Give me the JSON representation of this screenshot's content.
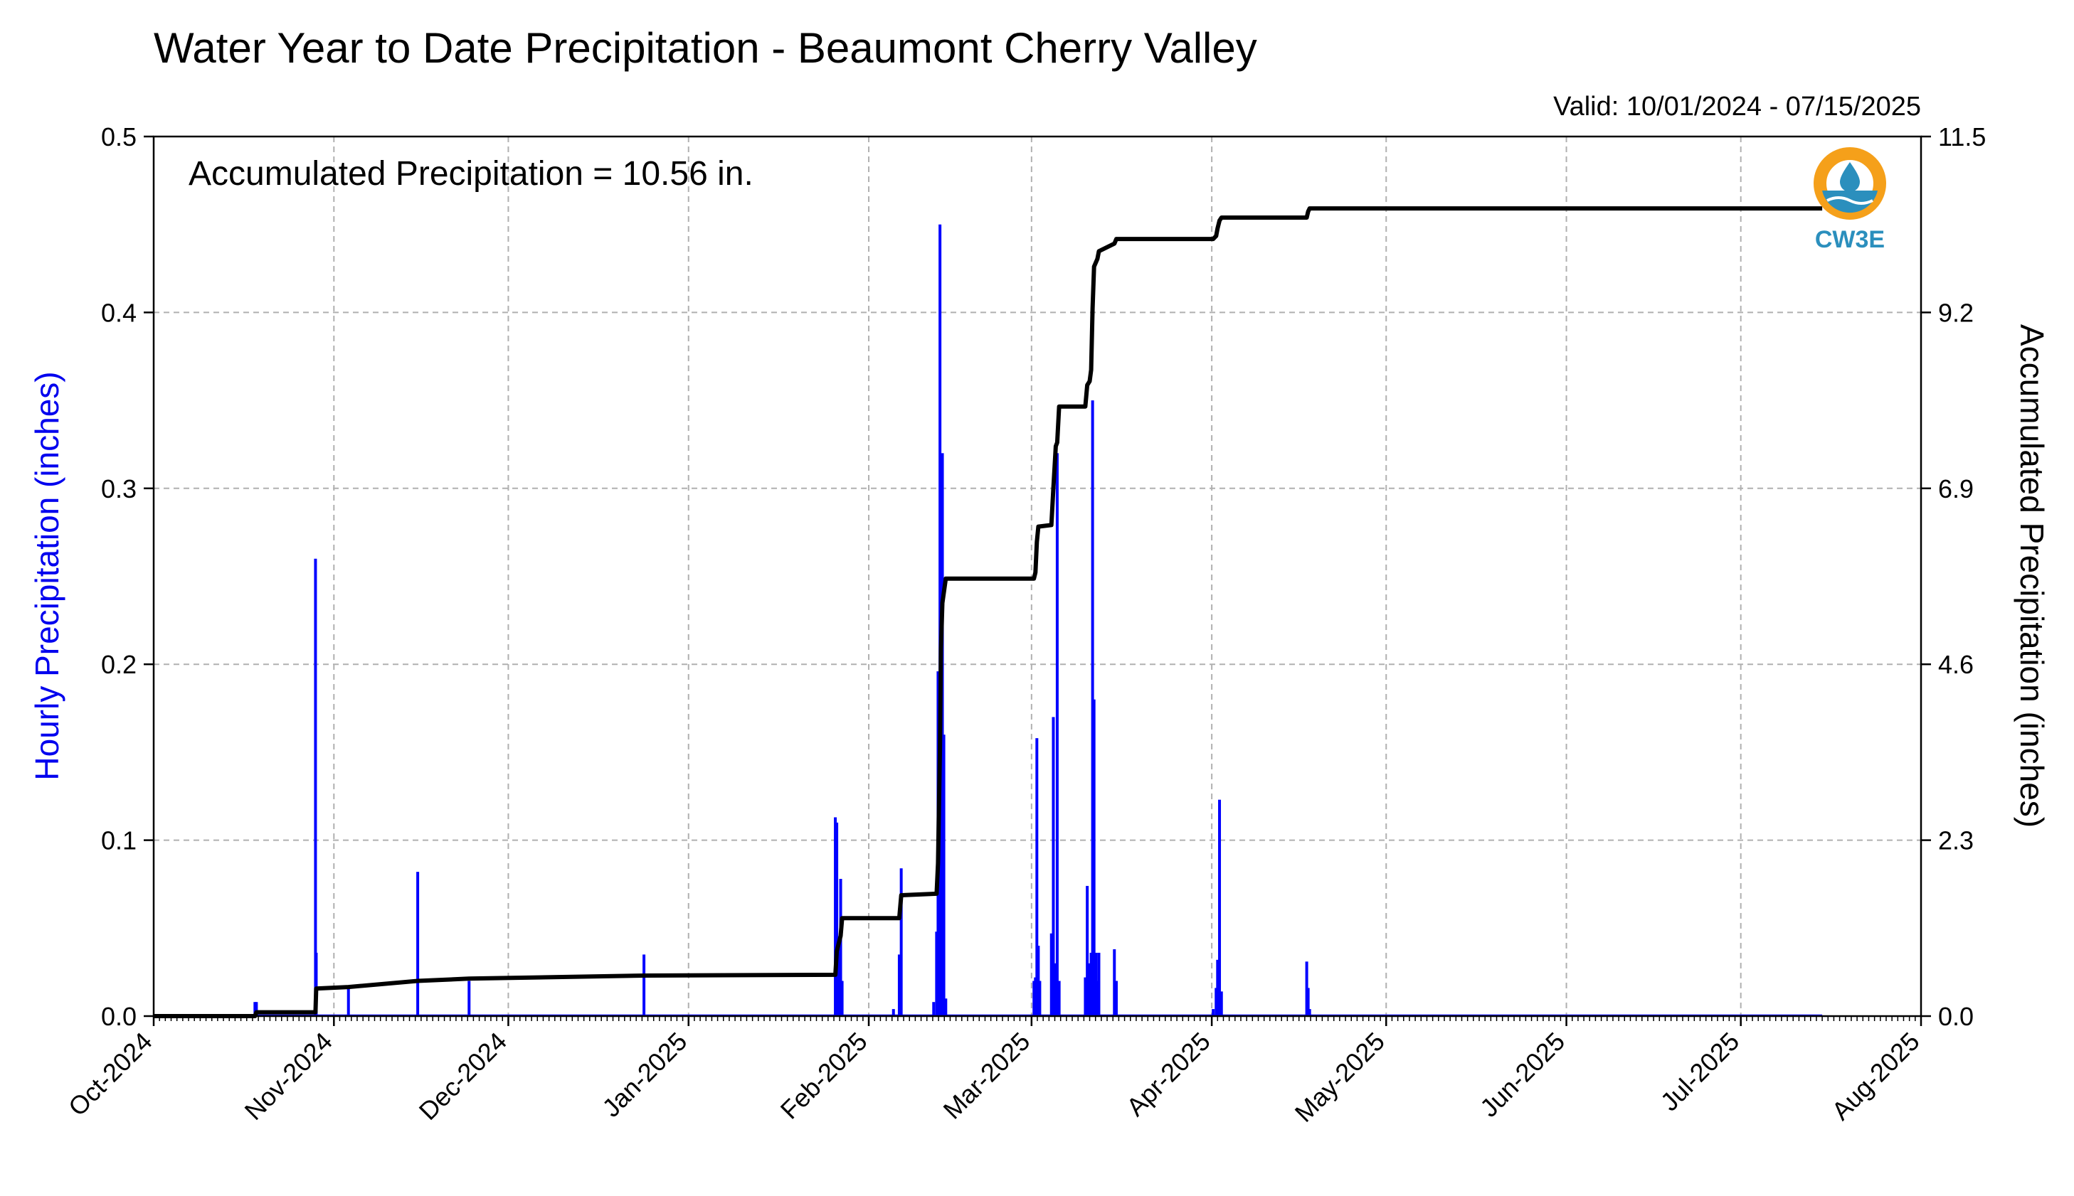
{
  "chart_data": {
    "type": "bar",
    "title": "Water Year to Date Precipitation - Beaumont Cherry Valley",
    "subtitle": "Valid: 10/01/2024 - 07/15/2025",
    "annotation": "Accumulated Precipitation = 10.56 in.",
    "ylabel_left": "Hourly Precipitation (inches)",
    "ylabel_right": "Accumulated Precipitation (inches)",
    "ylim_left": [
      0,
      0.5
    ],
    "ylim_right": [
      0,
      11.5
    ],
    "xlim": [
      "2024-10-01",
      "2025-08-01"
    ],
    "y_ticks_left": [
      "0.0",
      "0.1",
      "0.2",
      "0.3",
      "0.4",
      "0.5"
    ],
    "y_ticks_right": [
      "0.0",
      "2.3",
      "4.6",
      "6.9",
      "9.2",
      "11.5"
    ],
    "x_ticks": [
      {
        "date": "2024-10-01",
        "label": "Oct-2024"
      },
      {
        "date": "2024-11-01",
        "label": "Nov-2024"
      },
      {
        "date": "2024-12-01",
        "label": "Dec-2024"
      },
      {
        "date": "2025-01-01",
        "label": "Jan-2025"
      },
      {
        "date": "2025-02-01",
        "label": "Feb-2025"
      },
      {
        "date": "2025-03-01",
        "label": "Mar-2025"
      },
      {
        "date": "2025-04-01",
        "label": "Apr-2025"
      },
      {
        "date": "2025-05-01",
        "label": "May-2025"
      },
      {
        "date": "2025-06-01",
        "label": "Jun-2025"
      },
      {
        "date": "2025-07-01",
        "label": "Jul-2025"
      },
      {
        "date": "2025-08-01",
        "label": "Aug-2025"
      }
    ],
    "grid": true,
    "colors": {
      "hourly": "#0000ff",
      "accumulated": "#000000",
      "logo_ring": "#f5a01a",
      "logo_blue": "#2b8fbd"
    },
    "series": [
      {
        "name": "Hourly Precipitation (inches)",
        "type": "bar",
        "points": [
          [
            "2024-10-18T10:00",
            0.008
          ],
          [
            "2024-10-18T16:00",
            0.008
          ],
          [
            "2024-10-28T20:00",
            0.26
          ],
          [
            "2024-10-28T23:00",
            0.036
          ],
          [
            "2024-11-03T12:00",
            0.016
          ],
          [
            "2024-11-15T10:00",
            0.082
          ],
          [
            "2024-11-24T06:00",
            0.02
          ],
          [
            "2024-12-24T08:00",
            0.035
          ],
          [
            "2025-01-26T06:00",
            0.113
          ],
          [
            "2025-01-26T12:00",
            0.11
          ],
          [
            "2025-01-26T20:00",
            0.04
          ],
          [
            "2025-01-27T04:00",
            0.078
          ],
          [
            "2025-01-27T10:00",
            0.02
          ],
          [
            "2025-02-05T06:00",
            0.004
          ],
          [
            "2025-02-06T06:00",
            0.035
          ],
          [
            "2025-02-06T14:00",
            0.084
          ],
          [
            "2025-02-12T04:00",
            0.008
          ],
          [
            "2025-02-12T16:00",
            0.048
          ],
          [
            "2025-02-12T22:00",
            0.196
          ],
          [
            "2025-02-13T06:00",
            0.45
          ],
          [
            "2025-02-13T10:00",
            0.24
          ],
          [
            "2025-02-13T16:00",
            0.32
          ],
          [
            "2025-02-13T22:00",
            0.16
          ],
          [
            "2025-02-14T06:00",
            0.01
          ],
          [
            "2025-03-01T10:00",
            0.02
          ],
          [
            "2025-03-01T16:00",
            0.022
          ],
          [
            "2025-03-01T22:00",
            0.158
          ],
          [
            "2025-03-02T04:00",
            0.04
          ],
          [
            "2025-03-02T10:00",
            0.02
          ],
          [
            "2025-03-04T10:00",
            0.047
          ],
          [
            "2025-03-04T18:00",
            0.17
          ],
          [
            "2025-03-05T04:00",
            0.03
          ],
          [
            "2025-03-05T10:00",
            0.32
          ],
          [
            "2025-03-05T18:00",
            0.02
          ],
          [
            "2025-03-10T06:00",
            0.022
          ],
          [
            "2025-03-10T14:00",
            0.074
          ],
          [
            "2025-03-11T00:00",
            0.03
          ],
          [
            "2025-03-11T06:00",
            0.036
          ],
          [
            "2025-03-11T12:00",
            0.35
          ],
          [
            "2025-03-11T18:00",
            0.18
          ],
          [
            "2025-03-12T02:00",
            0.036
          ],
          [
            "2025-03-12T08:00",
            0.02
          ],
          [
            "2025-03-12T14:00",
            0.036
          ],
          [
            "2025-03-15T06:00",
            0.038
          ],
          [
            "2025-03-15T14:00",
            0.02
          ],
          [
            "2025-04-01T06:00",
            0.004
          ],
          [
            "2025-04-01T18:00",
            0.016
          ],
          [
            "2025-04-02T00:00",
            0.032
          ],
          [
            "2025-04-02T08:00",
            0.123
          ],
          [
            "2025-04-02T16:00",
            0.014
          ],
          [
            "2025-04-17T08:00",
            0.031
          ],
          [
            "2025-04-17T14:00",
            0.016
          ],
          [
            "2025-04-17T20:00",
            0.004
          ]
        ]
      },
      {
        "name": "Accumulated Precipitation (inches)",
        "type": "step",
        "points": [
          [
            "2024-10-01T00:00",
            0.0
          ],
          [
            "2024-10-18T10:00",
            0.0
          ],
          [
            "2024-10-18T16:00",
            0.05
          ],
          [
            "2024-10-28T20:00",
            0.05
          ],
          [
            "2024-10-28T23:00",
            0.36
          ],
          [
            "2024-11-03T12:00",
            0.38
          ],
          [
            "2024-11-15T10:00",
            0.46
          ],
          [
            "2024-11-24T06:00",
            0.49
          ],
          [
            "2024-12-24T08:00",
            0.53
          ],
          [
            "2025-01-26T06:00",
            0.54
          ],
          [
            "2025-01-26T12:00",
            0.85
          ],
          [
            "2025-01-27T04:00",
            1.05
          ],
          [
            "2025-01-27T10:00",
            1.28
          ],
          [
            "2025-02-06T06:00",
            1.28
          ],
          [
            "2025-02-06T14:00",
            1.58
          ],
          [
            "2025-02-12T16:00",
            1.6
          ],
          [
            "2025-02-12T22:00",
            2.0
          ],
          [
            "2025-02-13T06:00",
            3.5
          ],
          [
            "2025-02-13T10:00",
            4.8
          ],
          [
            "2025-02-13T16:00",
            5.4
          ],
          [
            "2025-02-14T06:00",
            5.72
          ],
          [
            "2025-03-01T10:00",
            5.72
          ],
          [
            "2025-03-01T16:00",
            5.8
          ],
          [
            "2025-03-01T22:00",
            6.2
          ],
          [
            "2025-03-02T04:00",
            6.4
          ],
          [
            "2025-03-04T10:00",
            6.42
          ],
          [
            "2025-03-04T18:00",
            6.9
          ],
          [
            "2025-03-05T04:00",
            7.45
          ],
          [
            "2025-03-05T10:00",
            7.5
          ],
          [
            "2025-03-05T18:00",
            7.97
          ],
          [
            "2025-03-10T06:00",
            7.97
          ],
          [
            "2025-03-10T14:00",
            8.25
          ],
          [
            "2025-03-11T00:00",
            8.3
          ],
          [
            "2025-03-11T06:00",
            8.45
          ],
          [
            "2025-03-11T12:00",
            9.25
          ],
          [
            "2025-03-11T18:00",
            9.8
          ],
          [
            "2025-03-12T08:00",
            9.9
          ],
          [
            "2025-03-12T14:00",
            10.0
          ],
          [
            "2025-03-15T06:00",
            10.1
          ],
          [
            "2025-03-15T14:00",
            10.16
          ],
          [
            "2025-04-01T06:00",
            10.16
          ],
          [
            "2025-04-01T18:00",
            10.2
          ],
          [
            "2025-04-02T00:00",
            10.3
          ],
          [
            "2025-04-02T08:00",
            10.4
          ],
          [
            "2025-04-02T16:00",
            10.44
          ],
          [
            "2025-04-17T08:00",
            10.44
          ],
          [
            "2025-04-17T14:00",
            10.52
          ],
          [
            "2025-04-17T20:00",
            10.56
          ],
          [
            "2025-07-15T00:00",
            10.56
          ]
        ]
      }
    ]
  },
  "logo": {
    "text": "CW3E"
  }
}
